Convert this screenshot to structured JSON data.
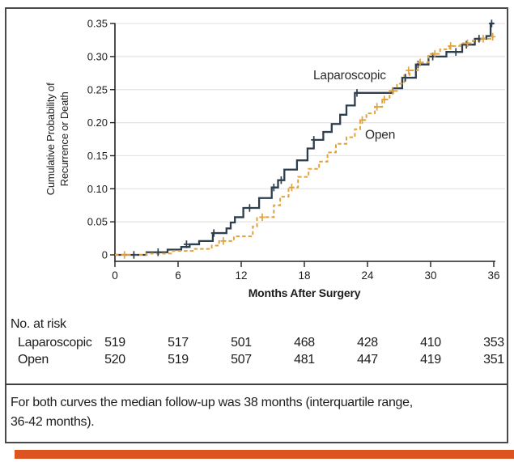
{
  "figure": {
    "footnote_line1": "For both curves the median follow-up was 38 months (interquartile range,",
    "footnote_line2": "36-42 months).",
    "border_color": "#4a4a4a",
    "accent_bar_color": "#dd5420"
  },
  "chart_data": {
    "type": "line",
    "subtype": "kaplan-meier-step",
    "title": "",
    "xlabel": "Months After Surgery",
    "ylabel": "Cumulative Probability of Recurrence or Death",
    "xlim": [
      0,
      36
    ],
    "ylim": [
      0,
      0.35
    ],
    "xticks": [
      0,
      6,
      12,
      18,
      24,
      30,
      36
    ],
    "yticks": [
      0,
      0.05,
      0.1,
      0.15,
      0.2,
      0.25,
      0.3,
      0.35
    ],
    "ytick_labels": [
      "0",
      "0.05",
      "0.10",
      "0.15",
      "0.20",
      "0.25",
      "0.30",
      "0.35"
    ],
    "grid": "horizontal",
    "gridline_color": "#e3e3e3",
    "axis_color": "#222222",
    "legend_position": "inline-labels",
    "series": [
      {
        "name": "Laparoscopic",
        "color": "#2d3e4e",
        "dash": "solid",
        "label_pos": [
          22.3,
          0.272
        ],
        "points": [
          [
            0,
            0
          ],
          [
            3,
            0.004
          ],
          [
            5,
            0.008
          ],
          [
            6.3,
            0.012
          ],
          [
            7.1,
            0.016
          ],
          [
            8,
            0.021
          ],
          [
            9.3,
            0.033
          ],
          [
            10.6,
            0.04
          ],
          [
            11.0,
            0.049
          ],
          [
            11.4,
            0.057
          ],
          [
            12.2,
            0.071
          ],
          [
            13.7,
            0.086
          ],
          [
            14.9,
            0.102
          ],
          [
            15.5,
            0.113
          ],
          [
            16.1,
            0.129
          ],
          [
            17.3,
            0.143
          ],
          [
            18.3,
            0.161
          ],
          [
            18.9,
            0.174
          ],
          [
            19.8,
            0.186
          ],
          [
            20.6,
            0.198
          ],
          [
            21.4,
            0.212
          ],
          [
            22.0,
            0.226
          ],
          [
            22.8,
            0.245
          ],
          [
            26.4,
            0.252
          ],
          [
            27.3,
            0.268
          ],
          [
            28.6,
            0.288
          ],
          [
            29.8,
            0.3
          ],
          [
            31.5,
            0.307
          ],
          [
            33.0,
            0.318
          ],
          [
            34.2,
            0.327
          ],
          [
            35.3,
            0.331
          ],
          [
            35.7,
            0.35
          ]
        ],
        "censor_marks": [
          [
            1.8,
            0
          ],
          [
            4.1,
            0.004
          ],
          [
            6.8,
            0.016
          ],
          [
            9.4,
            0.033
          ],
          [
            12.8,
            0.071
          ],
          [
            15.1,
            0.102
          ],
          [
            15.8,
            0.113
          ],
          [
            18.9,
            0.174
          ],
          [
            23.0,
            0.245
          ],
          [
            27.6,
            0.268
          ],
          [
            28.8,
            0.288
          ],
          [
            30.2,
            0.3
          ],
          [
            32.4,
            0.307
          ],
          [
            33.4,
            0.318
          ],
          [
            34.6,
            0.327
          ],
          [
            35.8,
            0.35
          ]
        ]
      },
      {
        "name": "Open",
        "color": "#e1a33e",
        "dash": "dashed",
        "label_pos": [
          25.2,
          0.182
        ],
        "points": [
          [
            0,
            0
          ],
          [
            3,
            0.002
          ],
          [
            5.5,
            0.006
          ],
          [
            7.5,
            0.009
          ],
          [
            9.2,
            0.014
          ],
          [
            9.9,
            0.021
          ],
          [
            11.3,
            0.028
          ],
          [
            13.1,
            0.043
          ],
          [
            13.5,
            0.057
          ],
          [
            15.1,
            0.075
          ],
          [
            15.7,
            0.088
          ],
          [
            16.5,
            0.102
          ],
          [
            17.4,
            0.118
          ],
          [
            18.4,
            0.13
          ],
          [
            19.4,
            0.141
          ],
          [
            20.2,
            0.155
          ],
          [
            21.0,
            0.168
          ],
          [
            22.0,
            0.178
          ],
          [
            22.8,
            0.19
          ],
          [
            23.3,
            0.204
          ],
          [
            23.9,
            0.214
          ],
          [
            24.7,
            0.224
          ],
          [
            25.4,
            0.235
          ],
          [
            26.1,
            0.248
          ],
          [
            26.8,
            0.259
          ],
          [
            27.5,
            0.272
          ],
          [
            28.0,
            0.279
          ],
          [
            28.8,
            0.291
          ],
          [
            29.8,
            0.304
          ],
          [
            30.9,
            0.311
          ],
          [
            31.8,
            0.316
          ],
          [
            32.8,
            0.32
          ],
          [
            34.0,
            0.324
          ],
          [
            34.9,
            0.327
          ],
          [
            35.7,
            0.33
          ]
        ],
        "censor_marks": [
          [
            0.9,
            0
          ],
          [
            10.3,
            0.021
          ],
          [
            14.0,
            0.057
          ],
          [
            16.8,
            0.102
          ],
          [
            23.5,
            0.204
          ],
          [
            24.9,
            0.224
          ],
          [
            25.6,
            0.235
          ],
          [
            26.4,
            0.248
          ],
          [
            27.9,
            0.279
          ],
          [
            29.0,
            0.291
          ],
          [
            30.4,
            0.304
          ],
          [
            31.9,
            0.316
          ],
          [
            33.5,
            0.32
          ],
          [
            35.0,
            0.327
          ],
          [
            35.9,
            0.33
          ]
        ]
      }
    ],
    "risk_table": {
      "heading": "No. at risk",
      "time_points": [
        0,
        6,
        12,
        18,
        24,
        30,
        36
      ],
      "rows": [
        {
          "label": "Laparoscopic",
          "values": [
            519,
            517,
            501,
            468,
            428,
            410,
            353
          ]
        },
        {
          "label": "Open",
          "values": [
            520,
            519,
            507,
            481,
            447,
            419,
            351
          ]
        }
      ]
    }
  }
}
